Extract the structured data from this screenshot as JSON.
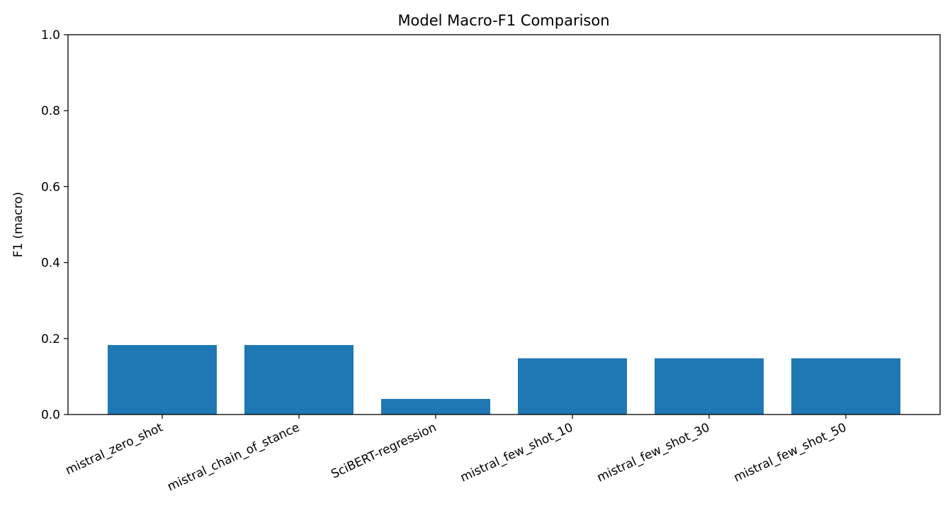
{
  "chart_data": {
    "type": "bar",
    "title": "Model Macro-F1 Comparison",
    "xlabel": "",
    "ylabel": "F1 (macro)",
    "categories": [
      "mistral_zero_shot",
      "mistral_chain_of_stance",
      "SciBERT-regression",
      "mistral_few_shot_10",
      "mistral_few_shot_30",
      "mistral_few_shot_50"
    ],
    "values": [
      0.183,
      0.183,
      0.041,
      0.148,
      0.148,
      0.148
    ],
    "ylim": [
      0,
      1.0
    ],
    "yticks": [
      "0.0",
      "0.2",
      "0.4",
      "0.6",
      "0.8",
      "1.0"
    ],
    "grid": false,
    "legend": "none",
    "bar_color": "#1f77b4"
  }
}
